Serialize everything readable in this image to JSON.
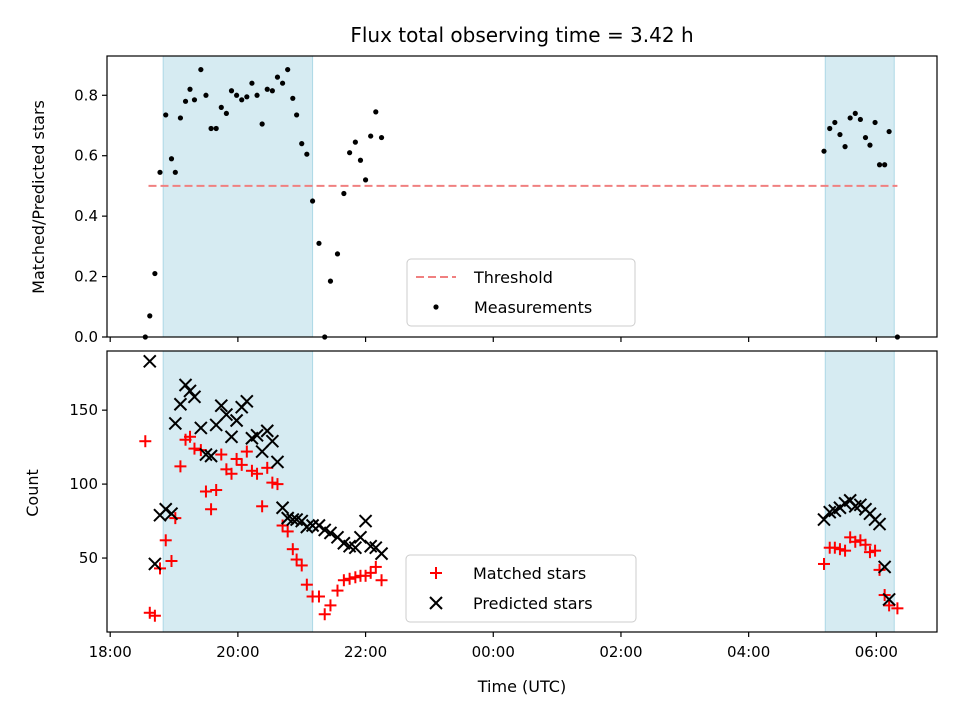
{
  "chart_data": [
    {
      "type": "scatter",
      "panel": "top",
      "title": "Flux total observing time = 3.42 h",
      "xlabel": "",
      "ylabel": "Matched/Predicted stars",
      "xlim_hours": [
        17.95,
        30.95
      ],
      "ylim": [
        0,
        0.93
      ],
      "yticks": [
        0.0,
        0.2,
        0.4,
        0.6,
        0.8
      ],
      "ytick_labels": [
        "0.0",
        "0.2",
        "0.4",
        "0.6",
        "0.8"
      ],
      "shaded_spans_hours": [
        [
          18.83,
          21.17
        ],
        [
          29.2,
          30.28
        ]
      ],
      "threshold": {
        "label": "Threshold",
        "value": 0.5,
        "x_range_hours": [
          18.6,
          30.33
        ],
        "color": "#f08080"
      },
      "series": [
        {
          "name": "Measurements",
          "color": "#000000",
          "points": [
            [
              18.55,
              0.0
            ],
            [
              18.62,
              0.07
            ],
            [
              18.7,
              0.21
            ],
            [
              18.78,
              0.545
            ],
            [
              18.87,
              0.735
            ],
            [
              18.96,
              0.59
            ],
            [
              19.02,
              0.545
            ],
            [
              19.1,
              0.725
            ],
            [
              19.18,
              0.78
            ],
            [
              19.25,
              0.82
            ],
            [
              19.32,
              0.785
            ],
            [
              19.42,
              0.885
            ],
            [
              19.5,
              0.8
            ],
            [
              19.58,
              0.69
            ],
            [
              19.66,
              0.69
            ],
            [
              19.74,
              0.76
            ],
            [
              19.82,
              0.74
            ],
            [
              19.9,
              0.815
            ],
            [
              19.98,
              0.8
            ],
            [
              20.06,
              0.785
            ],
            [
              20.14,
              0.795
            ],
            [
              20.22,
              0.84
            ],
            [
              20.3,
              0.8
            ],
            [
              20.38,
              0.705
            ],
            [
              20.46,
              0.82
            ],
            [
              20.54,
              0.815
            ],
            [
              20.62,
              0.86
            ],
            [
              20.7,
              0.84
            ],
            [
              20.78,
              0.885
            ],
            [
              20.86,
              0.79
            ],
            [
              20.92,
              0.735
            ],
            [
              21.0,
              0.64
            ],
            [
              21.08,
              0.605
            ],
            [
              21.17,
              0.45
            ],
            [
              21.27,
              0.31
            ],
            [
              21.36,
              0.0
            ],
            [
              21.45,
              0.185
            ],
            [
              21.56,
              0.275
            ],
            [
              21.66,
              0.475
            ],
            [
              21.75,
              0.61
            ],
            [
              21.84,
              0.645
            ],
            [
              21.92,
              0.585
            ],
            [
              22.0,
              0.52
            ],
            [
              22.08,
              0.665
            ],
            [
              22.16,
              0.745
            ],
            [
              22.25,
              0.66
            ],
            [
              29.18,
              0.615
            ],
            [
              29.27,
              0.69
            ],
            [
              29.35,
              0.71
            ],
            [
              29.43,
              0.67
            ],
            [
              29.51,
              0.63
            ],
            [
              29.59,
              0.725
            ],
            [
              29.67,
              0.74
            ],
            [
              29.75,
              0.72
            ],
            [
              29.83,
              0.66
            ],
            [
              29.9,
              0.635
            ],
            [
              29.98,
              0.71
            ],
            [
              30.05,
              0.57
            ],
            [
              30.13,
              0.57
            ],
            [
              30.2,
              0.68
            ],
            [
              30.33,
              0.0
            ]
          ]
        }
      ],
      "legend": {
        "location": "lower center",
        "entries": [
          "Threshold",
          "Measurements"
        ]
      }
    },
    {
      "type": "scatter",
      "panel": "bottom",
      "title": "",
      "xlabel": "Time (UTC)",
      "ylabel": "Count",
      "xlim_hours": [
        17.95,
        30.95
      ],
      "ylim": [
        0,
        190
      ],
      "yticks": [
        50,
        100,
        150
      ],
      "ytick_labels": [
        "50",
        "100",
        "150"
      ],
      "xticks_hours": [
        18,
        20,
        22,
        24,
        26,
        28,
        30
      ],
      "xtick_labels": [
        "18:00",
        "20:00",
        "22:00",
        "00:00",
        "02:00",
        "04:00",
        "06:00"
      ],
      "shaded_spans_hours": [
        [
          18.83,
          21.17
        ],
        [
          29.2,
          30.28
        ]
      ],
      "series": [
        {
          "name": "Matched stars",
          "marker": "plus",
          "color": "#ff0000",
          "points": [
            [
              18.55,
              129
            ],
            [
              18.62,
              13
            ],
            [
              18.7,
              11
            ],
            [
              18.78,
              43
            ],
            [
              18.87,
              62
            ],
            [
              18.96,
              48
            ],
            [
              19.02,
              77
            ],
            [
              19.1,
              112
            ],
            [
              19.18,
              130
            ],
            [
              19.25,
              132
            ],
            [
              19.32,
              124
            ],
            [
              19.42,
              123
            ],
            [
              19.5,
              95
            ],
            [
              19.58,
              83
            ],
            [
              19.66,
              96
            ],
            [
              19.74,
              120
            ],
            [
              19.82,
              110
            ],
            [
              19.9,
              107
            ],
            [
              19.98,
              117
            ],
            [
              20.06,
              113
            ],
            [
              20.14,
              122
            ],
            [
              20.22,
              109
            ],
            [
              20.3,
              107
            ],
            [
              20.38,
              85
            ],
            [
              20.46,
              111
            ],
            [
              20.54,
              101
            ],
            [
              20.62,
              100
            ],
            [
              20.7,
              72
            ],
            [
              20.78,
              68
            ],
            [
              20.86,
              56
            ],
            [
              20.92,
              49
            ],
            [
              21.0,
              45
            ],
            [
              21.08,
              32
            ],
            [
              21.17,
              24
            ],
            [
              21.27,
              24
            ],
            [
              21.36,
              12
            ],
            [
              21.45,
              18
            ],
            [
              21.56,
              28
            ],
            [
              21.66,
              35
            ],
            [
              21.75,
              36
            ],
            [
              21.84,
              37
            ],
            [
              21.92,
              38
            ],
            [
              22.0,
              38
            ],
            [
              22.08,
              40
            ],
            [
              22.16,
              44
            ],
            [
              22.25,
              35
            ],
            [
              29.18,
              46
            ],
            [
              29.27,
              57
            ],
            [
              29.35,
              57
            ],
            [
              29.43,
              56
            ],
            [
              29.51,
              55
            ],
            [
              29.59,
              64
            ],
            [
              29.67,
              61
            ],
            [
              29.75,
              62
            ],
            [
              29.83,
              59
            ],
            [
              29.9,
              54
            ],
            [
              29.98,
              55
            ],
            [
              30.05,
              42
            ],
            [
              30.13,
              25
            ],
            [
              30.2,
              18
            ],
            [
              30.33,
              16
            ]
          ]
        },
        {
          "name": "Predicted stars",
          "marker": "x",
          "color": "#000000",
          "points": [
            [
              18.62,
              183
            ],
            [
              18.7,
              46
            ],
            [
              18.78,
              79
            ],
            [
              18.87,
              83
            ],
            [
              18.96,
              80
            ],
            [
              19.02,
              141
            ],
            [
              19.1,
              154
            ],
            [
              19.18,
              167
            ],
            [
              19.25,
              163
            ],
            [
              19.32,
              159
            ],
            [
              19.42,
              138
            ],
            [
              19.5,
              120
            ],
            [
              19.58,
              119
            ],
            [
              19.66,
              140
            ],
            [
              19.74,
              153
            ],
            [
              19.82,
              147
            ],
            [
              19.9,
              132
            ],
            [
              19.98,
              143
            ],
            [
              20.06,
              152
            ],
            [
              20.14,
              156
            ],
            [
              20.22,
              131
            ],
            [
              20.3,
              133
            ],
            [
              20.38,
              122
            ],
            [
              20.46,
              136
            ],
            [
              20.54,
              129
            ],
            [
              20.62,
              115
            ],
            [
              20.7,
              84
            ],
            [
              20.78,
              77
            ],
            [
              20.86,
              76
            ],
            [
              20.92,
              76
            ],
            [
              21.0,
              75
            ],
            [
              21.08,
              71
            ],
            [
              21.17,
              72
            ],
            [
              21.27,
              72
            ],
            [
              21.36,
              69
            ],
            [
              21.45,
              67
            ],
            [
              21.56,
              64
            ],
            [
              21.66,
              60
            ],
            [
              21.75,
              58
            ],
            [
              21.84,
              57
            ],
            [
              21.92,
              64
            ],
            [
              22.0,
              75
            ],
            [
              22.08,
              58
            ],
            [
              22.16,
              57
            ],
            [
              22.25,
              53
            ],
            [
              29.18,
              76
            ],
            [
              29.27,
              81
            ],
            [
              29.35,
              82
            ],
            [
              29.43,
              84
            ],
            [
              29.51,
              87
            ],
            [
              29.59,
              89
            ],
            [
              29.67,
              85
            ],
            [
              29.75,
              86
            ],
            [
              29.83,
              83
            ],
            [
              29.9,
              80
            ],
            [
              29.98,
              76
            ],
            [
              30.05,
              73
            ],
            [
              30.13,
              44
            ],
            [
              30.2,
              22
            ]
          ]
        }
      ],
      "legend": {
        "location": "lower center",
        "entries": [
          "Matched stars",
          "Predicted stars"
        ]
      }
    }
  ],
  "colors": {
    "span_fill": "#add8e6",
    "threshold": "#f08080",
    "matched": "#ff0000",
    "predicted": "#000000",
    "measurements": "#000000"
  }
}
